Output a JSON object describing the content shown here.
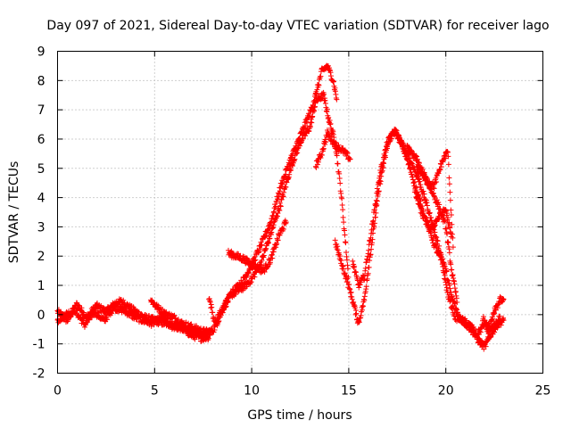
{
  "chart_data": {
    "type": "scatter",
    "title": "Day 097 of 2021, Sidereal Day-to-day VTEC variation (SDTVAR) for receiver lago",
    "xlabel": "GPS time / hours",
    "ylabel": "SDTVAR / TECUs",
    "xlim": [
      0,
      25
    ],
    "ylim": [
      -2,
      9
    ],
    "xticks": [
      0,
      5,
      10,
      15,
      20,
      25
    ],
    "yticks": [
      -2,
      -1,
      0,
      1,
      2,
      3,
      4,
      5,
      6,
      7,
      8,
      9
    ],
    "grid": true,
    "legend": "none",
    "marker": "+",
    "series": [
      {
        "name": "SDTVAR",
        "color": "#ff0000",
        "tracks": [
          {
            "x": [
              0,
              0.5,
              1,
              1.5,
              2,
              2.5,
              3,
              3.3,
              3.8,
              4.5,
              5,
              5.5,
              6,
              6.5,
              7,
              7.3,
              7.6,
              7.9
            ],
            "y": [
              0.1,
              -0.2,
              0.35,
              -0.1,
              0.3,
              0.1,
              0.4,
              0.45,
              0.2,
              -0.1,
              -0.2,
              -0.3,
              -0.35,
              -0.5,
              -0.6,
              -0.65,
              -0.7,
              -0.6
            ]
          },
          {
            "x": [
              0,
              0.4,
              0.9,
              1.4,
              1.9,
              2.4,
              2.9,
              3.4,
              3.9,
              4.4,
              4.9,
              5.4,
              5.9,
              6.4,
              6.9,
              7.4,
              7.8
            ],
            "y": [
              -0.2,
              0.0,
              0.15,
              -0.35,
              0.1,
              -0.2,
              0.25,
              0.15,
              -0.05,
              -0.2,
              -0.3,
              -0.1,
              -0.4,
              -0.45,
              -0.7,
              -0.8,
              -0.75
            ]
          },
          {
            "x": [
              4.8,
              5.2,
              5.6,
              6,
              6.4,
              6.8,
              7.2,
              7.6,
              8,
              8.2,
              8.6,
              9,
              9.5,
              10,
              10.5,
              11,
              11.5,
              12,
              12.5,
              13,
              13.3,
              13.7,
              14,
              14.3,
              14.6,
              15
            ],
            "y": [
              0.5,
              0.2,
              0.0,
              -0.1,
              -0.3,
              -0.4,
              -0.5,
              -0.6,
              -0.55,
              -0.3,
              0.3,
              0.7,
              0.9,
              1.2,
              1.8,
              2.8,
              3.8,
              5.0,
              5.9,
              6.4,
              7.3,
              7.5,
              6.6,
              5.9,
              4.2,
              1.2
            ]
          },
          {
            "x": [
              7.8,
              8.1,
              8.5,
              9,
              9.5,
              10,
              10.5,
              11,
              11.5,
              12,
              12.5,
              13,
              13.3,
              13.6,
              13.9,
              14.2,
              14.4
            ],
            "y": [
              0.6,
              -0.3,
              0.2,
              0.8,
              1.1,
              1.7,
              2.4,
              3.2,
              4.4,
              5.3,
              6.1,
              6.9,
              7.5,
              8.3,
              8.5,
              8.0,
              7.3
            ]
          },
          {
            "x": [
              8.8,
              9.2,
              9.6,
              10,
              10.3,
              10.6,
              11,
              11.4,
              11.8
            ],
            "y": [
              2.1,
              2.0,
              1.9,
              1.7,
              1.6,
              1.5,
              1.9,
              2.7,
              3.2
            ]
          },
          {
            "x": [
              13.3,
              13.6,
              13.9,
              14.3,
              14.7,
              15.1
            ],
            "y": [
              5.1,
              5.5,
              6.2,
              5.8,
              5.6,
              5.3
            ]
          },
          {
            "x": [
              14.3,
              14.6,
              14.9,
              15.2,
              15.5,
              15.8,
              16.2,
              16.6,
              17,
              17.3,
              17.6,
              18,
              18.5,
              19,
              19.5,
              20,
              20.3,
              20.7,
              21,
              21.3,
              21.7,
              22,
              22.3,
              22.7,
              23
            ],
            "y": [
              2.5,
              1.8,
              1.2,
              0.5,
              -0.3,
              0.5,
              2.5,
              4.5,
              5.8,
              6.3,
              6.0,
              5.5,
              4.8,
              3.8,
              2.6,
              1.5,
              0.6,
              -0.1,
              -0.3,
              -0.5,
              -0.9,
              -1.1,
              -0.7,
              -0.3,
              -0.2
            ]
          },
          {
            "x": [
              15.2,
              15.5,
              15.8,
              16.2,
              16.6,
              17,
              17.4,
              17.8,
              18.2,
              18.6,
              19,
              19.4,
              19.8,
              20.1,
              20.5,
              20.9,
              21.3,
              21.6,
              22,
              22.4,
              22.8
            ],
            "y": [
              1.8,
              1.0,
              1.3,
              3.0,
              4.8,
              5.9,
              6.3,
              5.7,
              4.9,
              4.0,
              3.2,
              2.4,
              1.8,
              0.7,
              -0.1,
              -0.2,
              -0.4,
              -0.7,
              -0.3,
              -0.5,
              -0.1
            ]
          },
          {
            "x": [
              18,
              18.5,
              19,
              19.4,
              19.8,
              20.1,
              20.4
            ],
            "y": [
              5.7,
              5.3,
              4.6,
              4.4,
              5.2,
              5.6,
              2.0
            ]
          },
          {
            "x": [
              18.4,
              18.8,
              19.2,
              19.6,
              20,
              20.3
            ],
            "y": [
              4.2,
              3.4,
              2.9,
              3.3,
              3.6,
              2.6
            ]
          },
          {
            "x": [
              18.5,
              18.9,
              19.3,
              19.7,
              20,
              20.3,
              20.6
            ],
            "y": [
              5.0,
              4.7,
              4.2,
              3.6,
              3.0,
              1.5,
              0.4
            ]
          },
          {
            "x": [
              21.9,
              22.2,
              22.5,
              22.8,
              23
            ],
            "y": [
              -0.1,
              -0.6,
              0.1,
              0.5,
              0.45
            ]
          }
        ]
      }
    ]
  }
}
